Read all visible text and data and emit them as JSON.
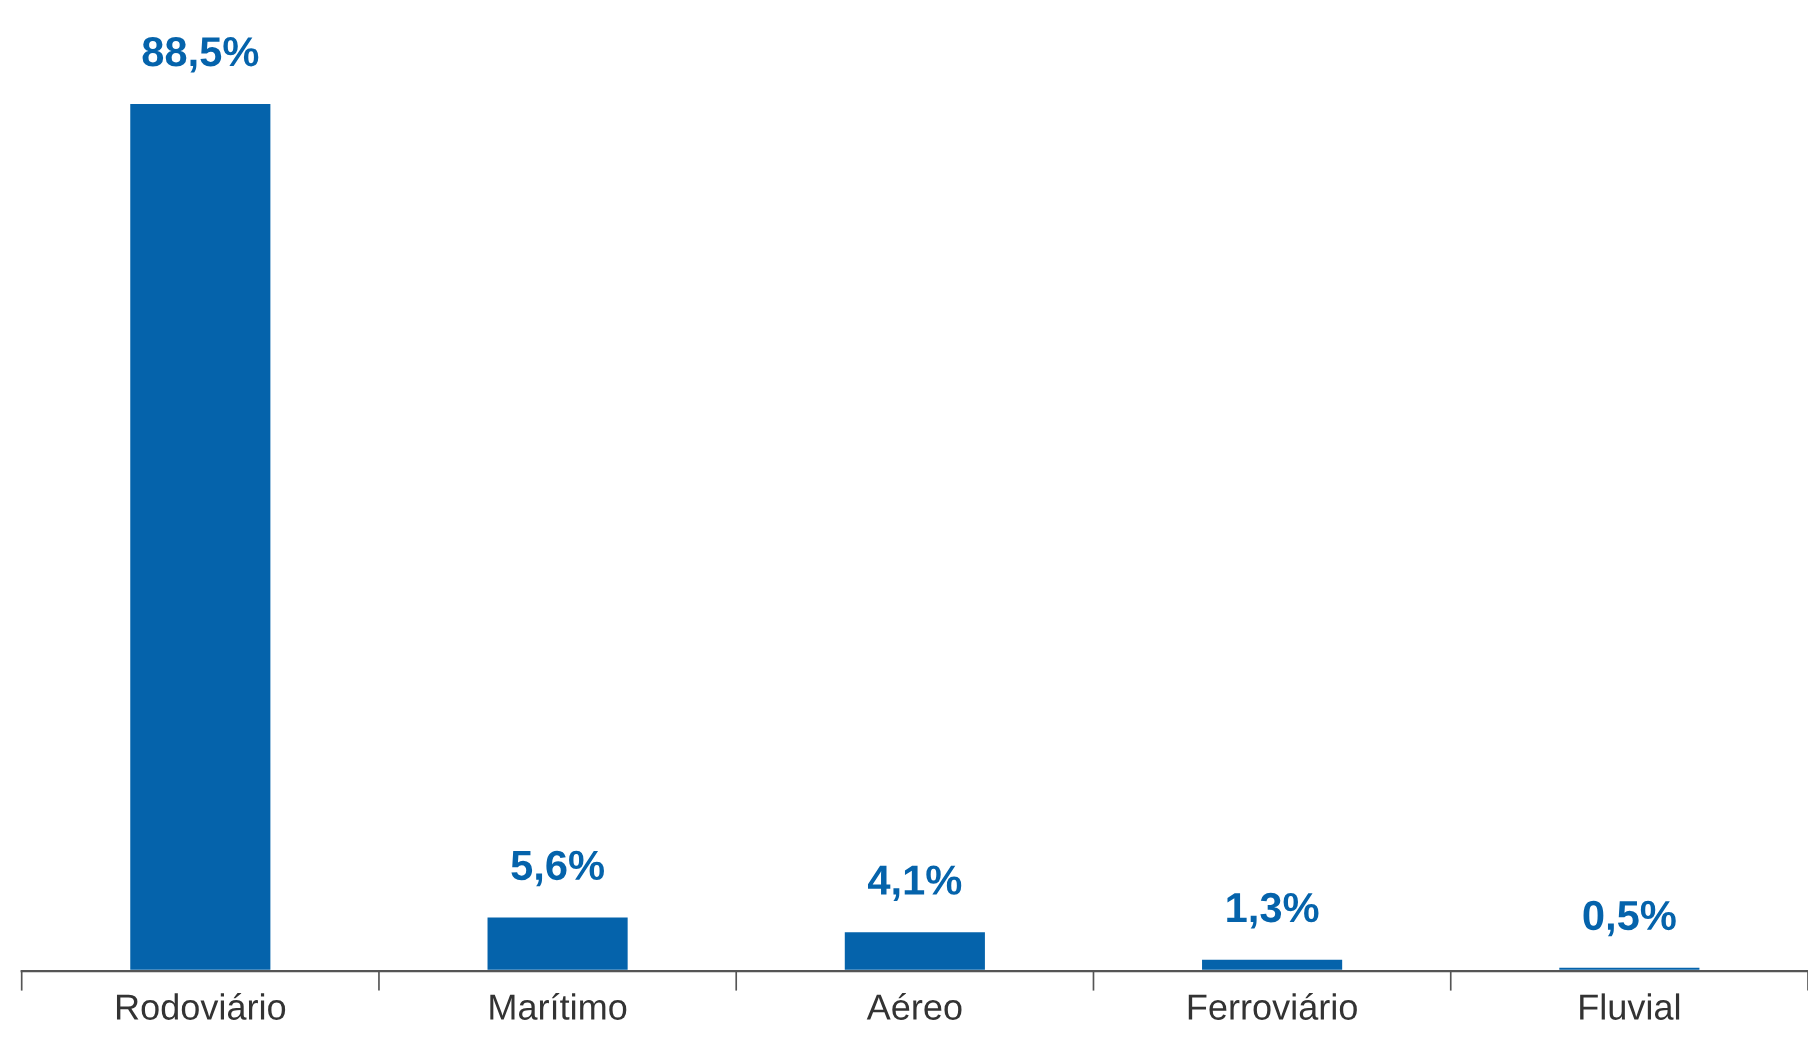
{
  "chart_data": {
    "type": "bar",
    "categories": [
      "Rodoviário",
      "Marítimo",
      "Aéreo",
      "Ferroviário",
      "Fluvial"
    ],
    "values": [
      88.5,
      5.6,
      4.1,
      1.3,
      0.5
    ],
    "value_labels": [
      "88,5%",
      "5,6%",
      "4,1%",
      "1,3%",
      "0,5%"
    ],
    "color": "#0563ab",
    "grid": false,
    "legend": false
  }
}
